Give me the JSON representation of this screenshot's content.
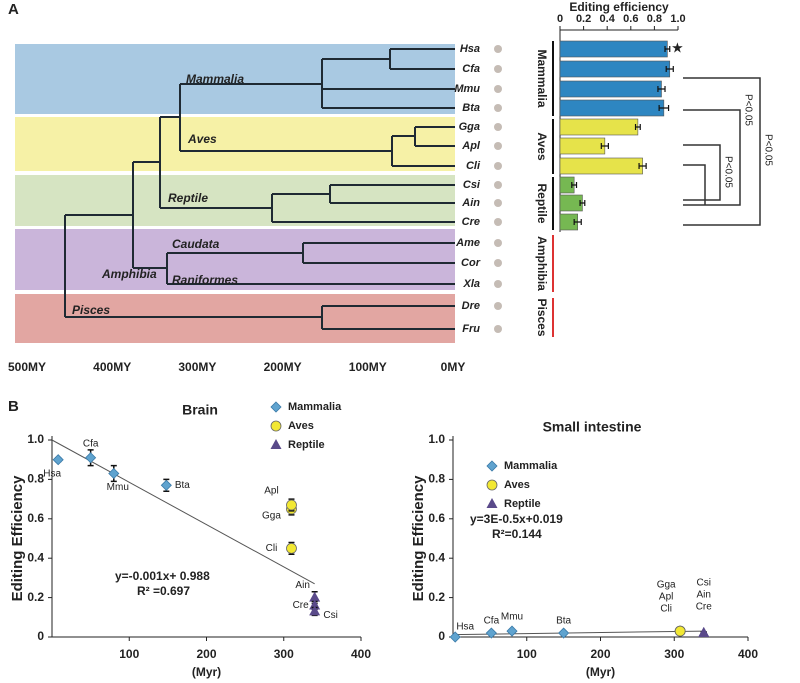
{
  "panels": [
    "A",
    "B"
  ],
  "tree": {
    "clades": [
      "Mammalia",
      "Aves",
      "Reptile",
      "Caudata",
      "Amphibia",
      "Raniformes",
      "Pisces"
    ],
    "xlim": [
      500,
      0
    ],
    "xticks": [
      {
        "value": 500,
        "label": "500MY"
      },
      {
        "value": 400,
        "label": "400MY"
      },
      {
        "value": 300,
        "label": "300MY"
      },
      {
        "value": 200,
        "label": "200MY"
      },
      {
        "value": 100,
        "label": "100MY"
      },
      {
        "value": 0,
        "label": "0MY"
      }
    ]
  },
  "chart_data": [
    {
      "type": "hbar",
      "xlabel": "Editing efficiency",
      "categories": [
        "Hsa",
        "Cfa",
        "Mmu",
        "Bta",
        "Gga",
        "Apl",
        "Cli",
        "Csi",
        "Ain",
        "Cre",
        "Ame",
        "Cor",
        "Xla",
        "Dre",
        "Fru"
      ],
      "values": [
        0.91,
        0.93,
        0.86,
        0.88,
        0.66,
        0.38,
        0.7,
        0.12,
        0.19,
        0.15,
        null,
        null,
        null,
        null,
        null
      ],
      "errors": [
        0.02,
        0.03,
        0.03,
        0.04,
        0.02,
        0.03,
        0.03,
        0.02,
        0.02,
        0.03,
        null,
        null,
        null,
        null,
        null
      ],
      "colors": [
        "#2e86c1",
        "#2e86c1",
        "#2e86c1",
        "#2e86c1",
        "#e6e34a",
        "#e6e34a",
        "#e6e34a",
        "#76b852",
        "#76b852",
        "#76b852",
        null,
        null,
        null,
        null,
        null
      ],
      "groups": [
        "Mammalia",
        "Aves",
        "Reptile",
        "Amphibia",
        "Pisces"
      ],
      "xlim": [
        0,
        1
      ],
      "xticks": [
        0,
        0.2,
        0.4,
        0.6,
        0.8,
        {
          "value": 1,
          "label": "1.0"
        }
      ],
      "star": "★",
      "significance": [
        "P<0.05",
        "P<0.05",
        "P<0.05"
      ]
    },
    {
      "type": "scatter",
      "title": "Brain",
      "xlabel": "(Myr)",
      "ylabel": "Editing Efficiency",
      "xlim": [
        0,
        400
      ],
      "xticks": [
        100,
        200,
        300,
        400
      ],
      "ylim": [
        0,
        1
      ],
      "yticks": [
        0,
        0.2,
        0.4,
        0.6,
        0.8,
        {
          "value": 1,
          "label": "1.0"
        }
      ],
      "series": [
        {
          "name": "Mammalia",
          "color": "#5fa3cf",
          "marker": "diamond",
          "labels": [
            "Hsa",
            "Cfa",
            "Mmu",
            "Bta"
          ],
          "x": [
            8,
            50,
            80,
            148
          ],
          "values": [
            0.9,
            0.91,
            0.83,
            0.77
          ],
          "errors": [
            0.01,
            0.04,
            0.04,
            0.03
          ]
        },
        {
          "name": "Aves",
          "color": "#f2e833",
          "marker": "circle",
          "labels": [
            "Gga",
            "Apl",
            "Cli"
          ],
          "x": [
            310,
            310,
            310
          ],
          "values": [
            0.65,
            0.67,
            0.45
          ],
          "errors": [
            0.03,
            0.03,
            0.03
          ]
        },
        {
          "name": "Reptile",
          "color": "#5a4a8a",
          "marker": "triangle",
          "labels": [
            "Ain",
            "Cre",
            "Csi"
          ],
          "x": [
            340,
            340,
            340
          ],
          "values": [
            0.2,
            0.16,
            0.13
          ],
          "errors": [
            0.03,
            0.02,
            0.02
          ]
        }
      ],
      "trendline": {
        "x": [
          0,
          340
        ],
        "y": [
          1.0,
          0.27
        ]
      },
      "equation": "y=-0.001x+ 0.988",
      "r2": "R² =0.697"
    },
    {
      "type": "scatter",
      "title": "Small intestine",
      "xlabel": "(Myr)",
      "ylabel": "Editing Efficiency",
      "xlim": [
        0,
        400
      ],
      "xticks": [
        100,
        200,
        300,
        400
      ],
      "ylim": [
        0,
        1
      ],
      "yticks": [
        0,
        0.2,
        0.4,
        0.6,
        0.8,
        {
          "value": 1,
          "label": "1.0"
        }
      ],
      "series": [
        {
          "name": "Mammalia",
          "color": "#5fa3cf",
          "marker": "diamond",
          "labels": [
            "Hsa",
            "Cfa",
            "Mmu",
            "Bta"
          ],
          "x": [
            3,
            52,
            80,
            150
          ],
          "values": [
            0,
            0.02,
            0.03,
            0.02
          ],
          "errors": [
            0.005,
            0.005,
            0.005,
            0.005
          ]
        },
        {
          "name": "Aves",
          "color": "#f2e833",
          "marker": "circle",
          "labels": [
            "Gga",
            "Apl",
            "Cli"
          ],
          "x": [
            308,
            308,
            308
          ],
          "values": [
            0.03,
            0.03,
            0.03
          ],
          "errors": [
            0.005,
            0.005,
            0.005
          ]
        },
        {
          "name": "Reptile",
          "color": "#5a4a8a",
          "marker": "triangle",
          "labels": [
            "Csi",
            "Ain",
            "Cre"
          ],
          "x": [
            340,
            340,
            340
          ],
          "values": [
            0.02,
            0.02,
            0.02
          ],
          "errors": [
            0.005,
            0.005,
            0.005
          ]
        }
      ],
      "trendline": {
        "x": [
          0,
          340
        ],
        "y": [
          0.012,
          0.03
        ]
      },
      "equation": "y=3E-0.5x+0.019",
      "r2": "R²=0.144"
    }
  ]
}
